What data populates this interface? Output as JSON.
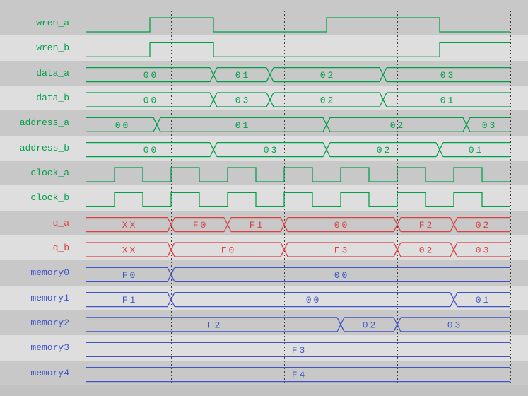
{
  "palette": {
    "green": "#00a04a",
    "red": "#dc4040",
    "blue": "#4054c8",
    "grid": "#3c3c3c",
    "row_dark": "#c8c8c8",
    "row_light": "#dedede",
    "bottom_strip": "#c2c2c2"
  },
  "grid": {
    "gridlines": [
      162,
      242,
      322,
      402,
      482,
      562,
      642,
      722
    ],
    "wave_start": 122,
    "wave_end": 722
  },
  "signals": [
    {
      "name": "wren_a",
      "color": "green",
      "kind": "digital",
      "initial": 0,
      "toggles": [
        212,
        302,
        462,
        622
      ]
    },
    {
      "name": "wren_b",
      "color": "green",
      "kind": "digital",
      "initial": 0,
      "toggles": [
        212,
        302,
        622
      ]
    },
    {
      "name": "data_a",
      "color": "green",
      "kind": "bus",
      "segments": [
        {
          "value": "00",
          "start": 122,
          "end": 302
        },
        {
          "value": "01",
          "start": 302,
          "end": 382
        },
        {
          "value": "02",
          "start": 382,
          "end": 542
        },
        {
          "value": "03",
          "start": 542,
          "end": 722
        }
      ]
    },
    {
      "name": "data_b",
      "color": "green",
      "kind": "bus",
      "segments": [
        {
          "value": "00",
          "start": 122,
          "end": 302
        },
        {
          "value": "03",
          "start": 302,
          "end": 382
        },
        {
          "value": "02",
          "start": 382,
          "end": 542
        },
        {
          "value": "01",
          "start": 542,
          "end": 722
        }
      ]
    },
    {
      "name": "address_a",
      "color": "green",
      "kind": "bus",
      "segments": [
        {
          "value": "00",
          "start": 122,
          "end": 222
        },
        {
          "value": "01",
          "start": 222,
          "end": 462
        },
        {
          "value": "02",
          "start": 462,
          "end": 660
        },
        {
          "value": "03",
          "start": 660,
          "end": 722
        }
      ]
    },
    {
      "name": "address_b",
      "color": "green",
      "kind": "bus",
      "segments": [
        {
          "value": "00",
          "start": 122,
          "end": 302
        },
        {
          "value": "03",
          "start": 302,
          "end": 462
        },
        {
          "value": "02",
          "start": 462,
          "end": 622
        },
        {
          "value": "01",
          "start": 622,
          "end": 722
        }
      ]
    },
    {
      "name": "clock_a",
      "color": "green",
      "kind": "digital",
      "initial": 0,
      "toggles": [
        162,
        202,
        242,
        282,
        322,
        362,
        402,
        442,
        482,
        522,
        562,
        602,
        642,
        682
      ]
    },
    {
      "name": "clock_b",
      "color": "green",
      "kind": "digital",
      "initial": 0,
      "toggles": [
        162,
        202,
        242,
        282,
        322,
        362,
        402,
        442,
        482,
        522,
        562,
        602,
        642,
        682
      ]
    },
    {
      "name": "q_a",
      "color": "red",
      "kind": "bus",
      "segments": [
        {
          "value": "XX",
          "start": 122,
          "end": 242
        },
        {
          "value": "F0",
          "start": 242,
          "end": 322
        },
        {
          "value": "F1",
          "start": 322,
          "end": 402
        },
        {
          "value": "00",
          "start": 402,
          "end": 562
        },
        {
          "value": "F2",
          "start": 562,
          "end": 642
        },
        {
          "value": "02",
          "start": 642,
          "end": 722
        }
      ]
    },
    {
      "name": "q_b",
      "color": "red",
      "kind": "bus",
      "segments": [
        {
          "value": "XX",
          "start": 122,
          "end": 242
        },
        {
          "value": "F0",
          "start": 242,
          "end": 402
        },
        {
          "value": "F3",
          "start": 402,
          "end": 562
        },
        {
          "value": "02",
          "start": 562,
          "end": 642
        },
        {
          "value": "03",
          "start": 642,
          "end": 722
        }
      ]
    },
    {
      "name": "memory0",
      "color": "blue",
      "kind": "bus",
      "segments": [
        {
          "value": "F0",
          "start": 122,
          "end": 242
        },
        {
          "value": "00",
          "start": 242,
          "end": 722
        }
      ]
    },
    {
      "name": "memory1",
      "color": "blue",
      "kind": "bus",
      "segments": [
        {
          "value": "F1",
          "start": 122,
          "end": 242
        },
        {
          "value": "00",
          "start": 242,
          "end": 642
        },
        {
          "value": "01",
          "start": 642,
          "end": 722
        }
      ]
    },
    {
      "name": "memory2",
      "color": "blue",
      "kind": "bus",
      "segments": [
        {
          "value": "F2",
          "start": 122,
          "end": 482
        },
        {
          "value": "02",
          "start": 482,
          "end": 562
        },
        {
          "value": "03",
          "start": 562,
          "end": 722
        }
      ]
    },
    {
      "name": "memory3",
      "color": "blue",
      "kind": "bus",
      "segments": [
        {
          "value": "F3",
          "start": 122,
          "end": 722
        }
      ]
    },
    {
      "name": "memory4",
      "color": "blue",
      "kind": "bus",
      "segments": [
        {
          "value": "F4",
          "start": 122,
          "end": 722
        }
      ]
    }
  ]
}
